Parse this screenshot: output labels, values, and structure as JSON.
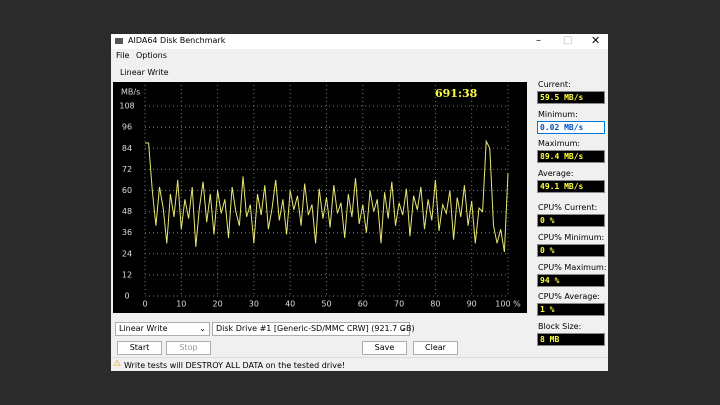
{
  "window": {
    "title": "AIDA64 Disk Benchmark",
    "menu": [
      "File",
      "Options"
    ],
    "tab": "Linear Write"
  },
  "chart_data": {
    "type": "line",
    "y_label": "MB/s",
    "timer": "691:38",
    "color": "#e8e870",
    "grid": true,
    "xlim": [
      0,
      100
    ],
    "ylim": [
      0,
      120
    ],
    "xticks": [
      0,
      10,
      20,
      30,
      40,
      50,
      60,
      70,
      80,
      90,
      {
        "value": 100,
        "label": "100 %"
      }
    ],
    "yticks": [
      0,
      12,
      24,
      36,
      48,
      60,
      72,
      84,
      96,
      108
    ],
    "x": [
      0,
      1,
      2,
      3,
      4,
      5,
      6,
      7,
      8,
      9,
      10,
      11,
      12,
      13,
      14,
      15,
      16,
      17,
      18,
      19,
      20,
      21,
      22,
      23,
      24,
      25,
      26,
      27,
      28,
      29,
      30,
      31,
      32,
      33,
      34,
      35,
      36,
      37,
      38,
      39,
      40,
      41,
      42,
      43,
      44,
      45,
      46,
      47,
      48,
      49,
      50,
      51,
      52,
      53,
      54,
      55,
      56,
      57,
      58,
      59,
      60,
      61,
      62,
      63,
      64,
      65,
      66,
      67,
      68,
      69,
      70,
      71,
      72,
      73,
      74,
      75,
      76,
      77,
      78,
      79,
      80,
      81,
      82,
      83,
      84,
      85,
      86,
      87,
      88,
      89,
      90,
      91,
      92,
      93,
      94,
      95,
      96,
      97,
      98,
      99,
      100
    ],
    "values": [
      87,
      87,
      60,
      40,
      62,
      50,
      30,
      58,
      45,
      66,
      38,
      55,
      44,
      62,
      28,
      50,
      65,
      42,
      58,
      35,
      60,
      47,
      55,
      33,
      62,
      48,
      40,
      68,
      45,
      52,
      30,
      58,
      46,
      63,
      38,
      50,
      66,
      43,
      55,
      35,
      60,
      49,
      57,
      40,
      64,
      46,
      52,
      30,
      61,
      44,
      56,
      39,
      63,
      47,
      53,
      33,
      58,
      45,
      67,
      41,
      52,
      36,
      60,
      48,
      55,
      30,
      59,
      44,
      65,
      40,
      53,
      46,
      61,
      34,
      57,
      49,
      62,
      38,
      55,
      43,
      66,
      37,
      52,
      47,
      60,
      32,
      56,
      45,
      63,
      40,
      54,
      30,
      50,
      48,
      88,
      84,
      40,
      30,
      38,
      25,
      70
    ]
  },
  "stats": [
    {
      "label": "Current:",
      "value": "59.5 MB/s"
    },
    {
      "label": "Minimum:",
      "value": "0.02 MB/s"
    },
    {
      "label": "Maximum:",
      "value": "89.4 MB/s"
    },
    {
      "label": "Average:",
      "value": "49.1 MB/s"
    },
    {
      "label": "CPU% Current:",
      "value": "0 %"
    },
    {
      "label": "CPU% Minimum:",
      "value": "0 %"
    },
    {
      "label": "CPU% Maximum:",
      "value": "94 %"
    },
    {
      "label": "CPU% Average:",
      "value": "1 %"
    },
    {
      "label": "Block Size:",
      "value": "8 MB"
    }
  ],
  "controls": {
    "test_select": "Linear Write",
    "drive_select": "Disk Drive #1  [Generic-SD/MMC CRW]  (921.7 GB)",
    "buttons": [
      "Start",
      "Stop",
      "Save",
      "Clear"
    ]
  },
  "status": "Write tests will DESTROY ALL DATA on the tested drive!"
}
